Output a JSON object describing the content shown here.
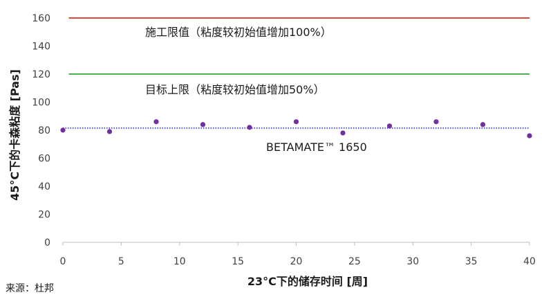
{
  "chart_data": {
    "type": "scatter",
    "xlabel": "23°C下的储存时间 [周]",
    "ylabel": "45°C下的卡森粘度 [Pas]",
    "xlim": [
      0,
      40
    ],
    "ylim": [
      0,
      160
    ],
    "x_ticks": [
      0,
      5,
      10,
      15,
      20,
      25,
      30,
      35,
      40
    ],
    "y_ticks": [
      0,
      20,
      40,
      60,
      80,
      100,
      120,
      140,
      160
    ],
    "grid": false,
    "series": [
      {
        "name": "BETAMATE™ 1650",
        "color": "#7030a0",
        "x": [
          0,
          4,
          8,
          12,
          16,
          20,
          24,
          28,
          32,
          36,
          40
        ],
        "y": [
          80,
          79,
          86,
          84,
          82,
          86,
          78,
          83,
          86,
          84,
          76
        ]
      }
    ],
    "reference_lines": [
      {
        "y": 160,
        "label": "施工限值（粘度较初始值增加100%）",
        "color": "#e0473a"
      },
      {
        "y": 120,
        "label": "目标上限（粘度较初始值增加50%）",
        "color": "#4caf50"
      },
      {
        "y": 81.5,
        "label": "",
        "color": "#5b5bd6",
        "style": "dotted"
      }
    ]
  },
  "source": "来源：杜邦"
}
